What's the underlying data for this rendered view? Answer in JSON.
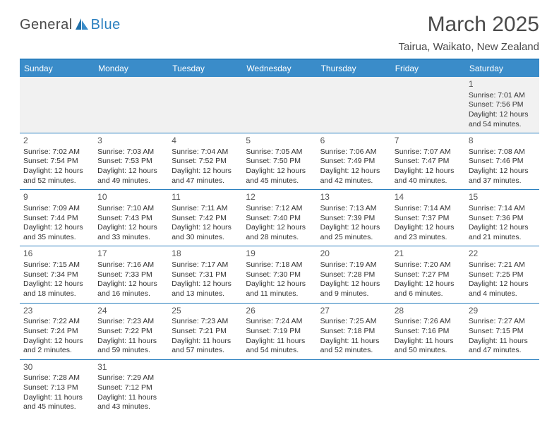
{
  "logo": {
    "word1": "General",
    "word2": "Blue"
  },
  "title": "March 2025",
  "location": "Tairua, Waikato, New Zealand",
  "colors": {
    "header_bg": "#3a8cc9",
    "border": "#2a7fbf",
    "text": "#333333",
    "title_text": "#4a4a4a",
    "offweek_bg": "#f1f1f1",
    "white": "#ffffff"
  },
  "fonts": {
    "title_size": 30,
    "location_size": 15,
    "header_size": 12,
    "cell_size": 10.5
  },
  "daynames": [
    "Sunday",
    "Monday",
    "Tuesday",
    "Wednesday",
    "Thursday",
    "Friday",
    "Saturday"
  ],
  "labels": {
    "sunrise": "Sunrise:",
    "sunset": "Sunset:",
    "daylight": "Daylight:"
  },
  "weeks": [
    [
      null,
      null,
      null,
      null,
      null,
      null,
      {
        "n": "1",
        "sr": "7:01 AM",
        "ss": "7:56 PM",
        "dl": "12 hours and 54 minutes."
      }
    ],
    [
      {
        "n": "2",
        "sr": "7:02 AM",
        "ss": "7:54 PM",
        "dl": "12 hours and 52 minutes."
      },
      {
        "n": "3",
        "sr": "7:03 AM",
        "ss": "7:53 PM",
        "dl": "12 hours and 49 minutes."
      },
      {
        "n": "4",
        "sr": "7:04 AM",
        "ss": "7:52 PM",
        "dl": "12 hours and 47 minutes."
      },
      {
        "n": "5",
        "sr": "7:05 AM",
        "ss": "7:50 PM",
        "dl": "12 hours and 45 minutes."
      },
      {
        "n": "6",
        "sr": "7:06 AM",
        "ss": "7:49 PM",
        "dl": "12 hours and 42 minutes."
      },
      {
        "n": "7",
        "sr": "7:07 AM",
        "ss": "7:47 PM",
        "dl": "12 hours and 40 minutes."
      },
      {
        "n": "8",
        "sr": "7:08 AM",
        "ss": "7:46 PM",
        "dl": "12 hours and 37 minutes."
      }
    ],
    [
      {
        "n": "9",
        "sr": "7:09 AM",
        "ss": "7:44 PM",
        "dl": "12 hours and 35 minutes."
      },
      {
        "n": "10",
        "sr": "7:10 AM",
        "ss": "7:43 PM",
        "dl": "12 hours and 33 minutes."
      },
      {
        "n": "11",
        "sr": "7:11 AM",
        "ss": "7:42 PM",
        "dl": "12 hours and 30 minutes."
      },
      {
        "n": "12",
        "sr": "7:12 AM",
        "ss": "7:40 PM",
        "dl": "12 hours and 28 minutes."
      },
      {
        "n": "13",
        "sr": "7:13 AM",
        "ss": "7:39 PM",
        "dl": "12 hours and 25 minutes."
      },
      {
        "n": "14",
        "sr": "7:14 AM",
        "ss": "7:37 PM",
        "dl": "12 hours and 23 minutes."
      },
      {
        "n": "15",
        "sr": "7:14 AM",
        "ss": "7:36 PM",
        "dl": "12 hours and 21 minutes."
      }
    ],
    [
      {
        "n": "16",
        "sr": "7:15 AM",
        "ss": "7:34 PM",
        "dl": "12 hours and 18 minutes."
      },
      {
        "n": "17",
        "sr": "7:16 AM",
        "ss": "7:33 PM",
        "dl": "12 hours and 16 minutes."
      },
      {
        "n": "18",
        "sr": "7:17 AM",
        "ss": "7:31 PM",
        "dl": "12 hours and 13 minutes."
      },
      {
        "n": "19",
        "sr": "7:18 AM",
        "ss": "7:30 PM",
        "dl": "12 hours and 11 minutes."
      },
      {
        "n": "20",
        "sr": "7:19 AM",
        "ss": "7:28 PM",
        "dl": "12 hours and 9 minutes."
      },
      {
        "n": "21",
        "sr": "7:20 AM",
        "ss": "7:27 PM",
        "dl": "12 hours and 6 minutes."
      },
      {
        "n": "22",
        "sr": "7:21 AM",
        "ss": "7:25 PM",
        "dl": "12 hours and 4 minutes."
      }
    ],
    [
      {
        "n": "23",
        "sr": "7:22 AM",
        "ss": "7:24 PM",
        "dl": "12 hours and 2 minutes."
      },
      {
        "n": "24",
        "sr": "7:23 AM",
        "ss": "7:22 PM",
        "dl": "11 hours and 59 minutes."
      },
      {
        "n": "25",
        "sr": "7:23 AM",
        "ss": "7:21 PM",
        "dl": "11 hours and 57 minutes."
      },
      {
        "n": "26",
        "sr": "7:24 AM",
        "ss": "7:19 PM",
        "dl": "11 hours and 54 minutes."
      },
      {
        "n": "27",
        "sr": "7:25 AM",
        "ss": "7:18 PM",
        "dl": "11 hours and 52 minutes."
      },
      {
        "n": "28",
        "sr": "7:26 AM",
        "ss": "7:16 PM",
        "dl": "11 hours and 50 minutes."
      },
      {
        "n": "29",
        "sr": "7:27 AM",
        "ss": "7:15 PM",
        "dl": "11 hours and 47 minutes."
      }
    ],
    [
      {
        "n": "30",
        "sr": "7:28 AM",
        "ss": "7:13 PM",
        "dl": "11 hours and 45 minutes."
      },
      {
        "n": "31",
        "sr": "7:29 AM",
        "ss": "7:12 PM",
        "dl": "11 hours and 43 minutes."
      },
      null,
      null,
      null,
      null,
      null
    ]
  ]
}
